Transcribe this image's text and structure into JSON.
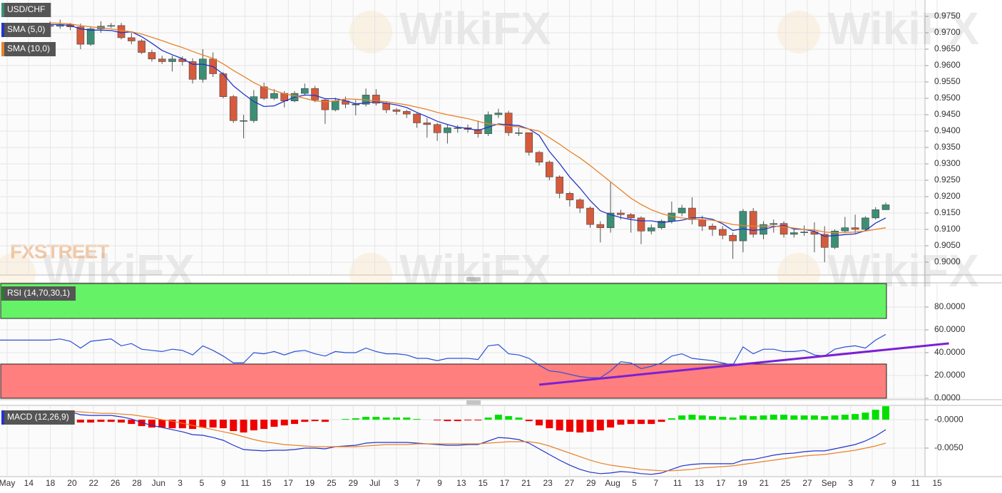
{
  "chart_data": [
    {
      "type": "candlestick",
      "title": "USD/CHF",
      "xtick_labels": [
        "May",
        "14",
        "18",
        "20",
        "22",
        "26",
        "28",
        "Jun",
        "3",
        "5",
        "9",
        "11",
        "15",
        "17",
        "19",
        "25",
        "29",
        "Jul",
        "3",
        "7",
        "9",
        "13",
        "15",
        "17",
        "21",
        "23",
        "27",
        "29",
        "Aug",
        "5",
        "7",
        "11",
        "13",
        "17",
        "19",
        "21",
        "25",
        "27",
        "Sep",
        "3",
        "7",
        "9",
        "11",
        "15"
      ],
      "up_color": "#3b8f75",
      "down_color": "#d65a3c",
      "open": [
        0.9722,
        0.972,
        0.9725,
        0.9718,
        0.9665,
        0.9712,
        0.972,
        0.9722,
        0.9685,
        0.9675,
        0.964,
        0.962,
        0.9612,
        0.962,
        0.9612,
        0.9558,
        0.962,
        0.9575,
        0.9505,
        0.9432,
        0.9432,
        0.9535,
        0.95,
        0.9515,
        0.9492,
        0.9515,
        0.953,
        0.9495,
        0.9465,
        0.9492,
        0.9482,
        0.9482,
        0.951,
        0.9485,
        0.9465,
        0.946,
        0.9452,
        0.9425,
        0.942,
        0.9395,
        0.941,
        0.941,
        0.9405,
        0.9392,
        0.945,
        0.9455,
        0.9395,
        0.9395,
        0.9335,
        0.9305,
        0.926,
        0.921,
        0.919,
        0.9165,
        0.9115,
        0.9105,
        0.915,
        0.9145,
        0.9135,
        0.9095,
        0.9105,
        0.9125,
        0.915,
        0.9165,
        0.913,
        0.911,
        0.91,
        0.9082,
        0.9065,
        0.9155,
        0.9085,
        0.9115,
        0.9118,
        0.9085,
        0.909,
        0.9092,
        0.9085,
        0.9045,
        0.9095,
        0.9105,
        0.91,
        0.9135,
        0.916
      ],
      "high": [
        0.9735,
        0.974,
        0.973,
        0.9728,
        0.972,
        0.9735,
        0.973,
        0.973,
        0.97,
        0.968,
        0.9648,
        0.963,
        0.963,
        0.9628,
        0.9622,
        0.965,
        0.964,
        0.958,
        0.951,
        0.945,
        0.9525,
        0.9548,
        0.9528,
        0.9522,
        0.9522,
        0.9545,
        0.9538,
        0.95,
        0.9502,
        0.9505,
        0.9495,
        0.953,
        0.9528,
        0.949,
        0.947,
        0.9465,
        0.9455,
        0.944,
        0.9425,
        0.942,
        0.9418,
        0.942,
        0.9432,
        0.946,
        0.9468,
        0.9462,
        0.941,
        0.9395,
        0.934,
        0.931,
        0.9265,
        0.9215,
        0.9195,
        0.917,
        0.9125,
        0.9245,
        0.916,
        0.915,
        0.914,
        0.9115,
        0.913,
        0.9185,
        0.9175,
        0.9198,
        0.9142,
        0.9118,
        0.911,
        0.909,
        0.9162,
        0.9165,
        0.9125,
        0.913,
        0.9125,
        0.91,
        0.9112,
        0.9122,
        0.911,
        0.91,
        0.9138,
        0.9145,
        0.914,
        0.9168,
        0.9182
      ],
      "low": [
        0.9712,
        0.9712,
        0.9708,
        0.965,
        0.966,
        0.97,
        0.9715,
        0.968,
        0.9665,
        0.9635,
        0.9612,
        0.9605,
        0.9582,
        0.96,
        0.9545,
        0.9548,
        0.9565,
        0.95,
        0.9425,
        0.9378,
        0.9425,
        0.9495,
        0.9495,
        0.9472,
        0.9488,
        0.9508,
        0.9488,
        0.9422,
        0.946,
        0.947,
        0.9448,
        0.9475,
        0.9478,
        0.9455,
        0.945,
        0.944,
        0.941,
        0.938,
        0.937,
        0.9362,
        0.9395,
        0.9395,
        0.938,
        0.9385,
        0.944,
        0.9385,
        0.9385,
        0.9325,
        0.9295,
        0.925,
        0.9195,
        0.917,
        0.915,
        0.9105,
        0.906,
        0.909,
        0.913,
        0.909,
        0.9055,
        0.9085,
        0.91,
        0.9118,
        0.914,
        0.9115,
        0.9095,
        0.908,
        0.907,
        0.901,
        0.903,
        0.9075,
        0.907,
        0.909,
        0.9075,
        0.9075,
        0.908,
        0.903,
        0.9,
        0.904,
        0.909,
        0.9088,
        0.9098,
        0.913,
        0.9162
      ],
      "close": [
        0.972,
        0.9725,
        0.9718,
        0.9665,
        0.9712,
        0.972,
        0.9722,
        0.9685,
        0.9675,
        0.964,
        0.962,
        0.9612,
        0.962,
        0.9612,
        0.9558,
        0.962,
        0.9575,
        0.9505,
        0.9432,
        0.9432,
        0.9505,
        0.95,
        0.9515,
        0.9492,
        0.9515,
        0.953,
        0.9495,
        0.9465,
        0.9492,
        0.9482,
        0.9482,
        0.951,
        0.9485,
        0.9465,
        0.946,
        0.9452,
        0.9425,
        0.942,
        0.9395,
        0.941,
        0.941,
        0.9405,
        0.9392,
        0.945,
        0.9455,
        0.9395,
        0.9395,
        0.9335,
        0.9305,
        0.926,
        0.921,
        0.919,
        0.9165,
        0.9115,
        0.9105,
        0.915,
        0.9145,
        0.9135,
        0.9095,
        0.9105,
        0.9125,
        0.915,
        0.9165,
        0.913,
        0.911,
        0.91,
        0.9082,
        0.9065,
        0.9155,
        0.9085,
        0.9115,
        0.9118,
        0.9085,
        0.909,
        0.9092,
        0.9085,
        0.9045,
        0.9095,
        0.9105,
        0.91,
        0.9135,
        0.916,
        0.9175
      ],
      "overlays": [
        {
          "name": "SMA (5,0)",
          "color": "#2233cc",
          "values": [
            0.9725,
            0.9725,
            0.9722,
            0.9712,
            0.9708,
            0.9708,
            0.9707,
            0.97,
            0.9703,
            0.9688,
            0.9668,
            0.9646,
            0.9633,
            0.9621,
            0.9604,
            0.9604,
            0.9597,
            0.9574,
            0.9538,
            0.9513,
            0.949,
            0.9475,
            0.9477,
            0.9491,
            0.9503,
            0.951,
            0.9509,
            0.9499,
            0.9499,
            0.9493,
            0.9483,
            0.9486,
            0.949,
            0.9485,
            0.948,
            0.9472,
            0.9457,
            0.9444,
            0.943,
            0.942,
            0.9412,
            0.9408,
            0.9402,
            0.9412,
            0.9422,
            0.9419,
            0.9417,
            0.9406,
            0.9387,
            0.9338,
            0.9301,
            0.926,
            0.9226,
            0.9188,
            0.9157,
            0.9145,
            0.9136,
            0.913,
            0.9126,
            0.9126,
            0.9121,
            0.9124,
            0.9128,
            0.9135,
            0.9136,
            0.9131,
            0.9117,
            0.9097,
            0.9102,
            0.9097,
            0.91,
            0.9108,
            0.9112,
            0.9101,
            0.91,
            0.9094,
            0.9079,
            0.9081,
            0.9084,
            0.9086,
            0.9096,
            0.9119,
            0.9135
          ]
        },
        {
          "name": "SMA (10,0)",
          "color": "#e8822a",
          "values": [
            0.973,
            0.9729,
            0.9727,
            0.9722,
            0.9718,
            0.9715,
            0.9712,
            0.9707,
            0.9703,
            0.9696,
            0.9686,
            0.9676,
            0.9665,
            0.9655,
            0.9643,
            0.9632,
            0.9622,
            0.9605,
            0.9585,
            0.9567,
            0.9548,
            0.9533,
            0.9524,
            0.9514,
            0.9508,
            0.95,
            0.9492,
            0.949,
            0.9492,
            0.9498,
            0.9497,
            0.9495,
            0.9492,
            0.949,
            0.9485,
            0.948,
            0.9473,
            0.9466,
            0.9457,
            0.945,
            0.9444,
            0.9438,
            0.943,
            0.9422,
            0.942,
            0.9415,
            0.9413,
            0.9406,
            0.94,
            0.938,
            0.936,
            0.9338,
            0.9318,
            0.9295,
            0.927,
            0.9245,
            0.922,
            0.9195,
            0.9176,
            0.916,
            0.9148,
            0.914,
            0.9135,
            0.9132,
            0.913,
            0.9128,
            0.9122,
            0.9115,
            0.9112,
            0.911,
            0.911,
            0.911,
            0.9108,
            0.9104,
            0.91,
            0.9098,
            0.9092,
            0.909,
            0.909,
            0.9092,
            0.9095,
            0.91,
            0.9105
          ]
        }
      ],
      "ylim": [
        0.8963,
        0.98
      ],
      "yticks": [
        {
          "value": 0.9,
          "label": "0.9000"
        },
        {
          "value": 0.905,
          "label": "0.9050"
        },
        {
          "value": 0.91,
          "label": "0.9100"
        },
        {
          "value": 0.915,
          "label": "0.9150"
        },
        {
          "value": 0.92,
          "label": "0.9200"
        },
        {
          "value": 0.925,
          "label": "0.9250"
        },
        {
          "value": 0.93,
          "label": "0.9300"
        },
        {
          "value": 0.935,
          "label": "0.9350"
        },
        {
          "value": 0.94,
          "label": "0.9400"
        },
        {
          "value": 0.945,
          "label": "0.9450"
        },
        {
          "value": 0.95,
          "label": "0.9500"
        },
        {
          "value": 0.955,
          "label": "0.9550"
        },
        {
          "value": 0.96,
          "label": "0.9600"
        },
        {
          "value": 0.965,
          "label": "0.9650"
        },
        {
          "value": 0.97,
          "label": "0.9700"
        },
        {
          "value": 0.975,
          "label": "0.9750"
        }
      ],
      "grid": true
    },
    {
      "type": "rsi",
      "title": "RSI (14,70,30,1)",
      "color": "#2a4fd8",
      "overbought": 70,
      "oversold": 30,
      "overbought_color": "#66f266",
      "oversold_color": "#ff7e7e",
      "values": [
        51,
        52,
        50,
        44,
        50,
        51,
        52,
        46,
        48,
        43,
        42,
        41,
        43,
        42,
        38,
        46,
        42,
        37,
        31,
        31,
        40,
        39,
        41,
        38,
        41,
        42,
        39,
        37,
        41,
        40,
        40,
        44,
        41,
        39,
        39,
        38,
        35,
        35,
        33,
        35,
        35,
        35,
        34,
        46,
        47,
        39,
        38,
        35,
        29,
        24,
        23,
        21,
        19,
        18,
        18,
        24,
        32,
        31,
        26,
        28,
        31,
        37,
        39,
        35,
        34,
        33,
        31,
        29,
        45,
        39,
        43,
        43,
        41,
        41,
        42,
        38,
        37,
        43,
        45,
        46,
        44,
        51,
        56
      ],
      "trendline": {
        "color": "#7b1fd6",
        "from": [
          48,
          11.9
        ],
        "to": [
          88.2,
          48.1
        ]
      },
      "ylim": [
        0,
        100.6
      ],
      "yticks": [
        {
          "value": 0,
          "label": "0.0000"
        },
        {
          "value": 20,
          "label": "20.0000"
        },
        {
          "value": 40,
          "label": "40.0000"
        },
        {
          "value": 60,
          "label": "60.0000"
        },
        {
          "value": 80,
          "label": "80.0000"
        }
      ],
      "grid": true
    },
    {
      "type": "macd",
      "title": "MACD (12,26,9)",
      "series": [
        {
          "color": "#2233cc",
          "values": [
            0.00138,
            0.0015,
            0.00138,
            0.00088,
            0.00075,
            0.00075,
            0.00075,
            0.0005,
            0.00013,
            -0.0005,
            -0.001,
            -0.00138,
            -0.00175,
            -0.00213,
            -0.00263,
            -0.00275,
            -0.00313,
            -0.00363,
            -0.0045,
            -0.00525,
            -0.00538,
            -0.0055,
            -0.00538,
            -0.00538,
            -0.00525,
            -0.005,
            -0.005,
            -0.00513,
            -0.00475,
            -0.00463,
            -0.0045,
            -0.00413,
            -0.004,
            -0.004,
            -0.004,
            -0.004,
            -0.00413,
            -0.00425,
            -0.00438,
            -0.0045,
            -0.0045,
            -0.00438,
            -0.00438,
            -0.00375,
            -0.00313,
            -0.00325,
            -0.0035,
            -0.00413,
            -0.00513,
            -0.00613,
            -0.00713,
            -0.008,
            -0.00875,
            -0.00925,
            -0.0095,
            -0.00938,
            -0.00913,
            -0.00925,
            -0.0095,
            -0.00963,
            -0.00938,
            -0.00875,
            -0.00813,
            -0.00788,
            -0.00775,
            -0.00775,
            -0.00775,
            -0.00775,
            -0.00713,
            -0.007,
            -0.00663,
            -0.00625,
            -0.006,
            -0.00588,
            -0.00563,
            -0.0055,
            -0.0055,
            -0.00513,
            -0.00475,
            -0.00438,
            -0.00375,
            -0.00288,
            -0.00175
          ]
        },
        {
          "color": "#e8822a",
          "values": [
            0.0015,
            0.0015,
            0.0015,
            0.00138,
            0.00125,
            0.00113,
            0.00113,
            0.001,
            0.00088,
            0.00063,
            0.00038,
            0,
            -0.00025,
            -0.00063,
            -0.001,
            -0.00138,
            -0.00175,
            -0.00213,
            -0.0025,
            -0.003,
            -0.0035,
            -0.00388,
            -0.00413,
            -0.00438,
            -0.0045,
            -0.00463,
            -0.00475,
            -0.00475,
            -0.00475,
            -0.00475,
            -0.00475,
            -0.00463,
            -0.0045,
            -0.00438,
            -0.00438,
            -0.00438,
            -0.00425,
            -0.00425,
            -0.00425,
            -0.00425,
            -0.00425,
            -0.00425,
            -0.00425,
            -0.00413,
            -0.004,
            -0.00388,
            -0.00388,
            -0.00388,
            -0.00413,
            -0.00463,
            -0.00525,
            -0.00588,
            -0.0065,
            -0.00713,
            -0.00763,
            -0.008,
            -0.00825,
            -0.0085,
            -0.00875,
            -0.00888,
            -0.009,
            -0.009,
            -0.00888,
            -0.00875,
            -0.0085,
            -0.00838,
            -0.00825,
            -0.00813,
            -0.00788,
            -0.00763,
            -0.00738,
            -0.00713,
            -0.00688,
            -0.00663,
            -0.00638,
            -0.00625,
            -0.00613,
            -0.00588,
            -0.00563,
            -0.00538,
            -0.005,
            -0.00463,
            -0.00413
          ]
        }
      ],
      "histogram": {
        "up_color": "#00e000",
        "down_color": "#ee0000",
        "values": [
          -0.00013,
          0,
          -0.00013,
          -0.0005,
          -0.0005,
          -0.00038,
          -0.00038,
          -0.0005,
          -0.00075,
          -0.00113,
          -0.00138,
          -0.00138,
          -0.0015,
          -0.0015,
          -0.00163,
          -0.00138,
          -0.00138,
          -0.0015,
          -0.002,
          -0.00225,
          -0.00188,
          -0.00163,
          -0.00125,
          -0.001,
          -0.00075,
          -0.00038,
          -0.00025,
          -0.00038,
          0,
          0.00013,
          0.00025,
          0.0005,
          0.0005,
          0.00038,
          0.00038,
          0.00038,
          0.00013,
          0,
          -0.00013,
          -0.00025,
          -0.00025,
          -0.00013,
          -0.00013,
          0.00038,
          0.00088,
          0.00063,
          0.00038,
          -0.00025,
          -0.001,
          -0.0015,
          -0.00188,
          -0.00213,
          -0.00225,
          -0.00213,
          -0.00188,
          -0.00138,
          -0.00088,
          -0.00075,
          -0.00075,
          -0.00075,
          -0.00038,
          0.00025,
          0.00075,
          0.00088,
          0.00075,
          0.00063,
          0.0005,
          0.00038,
          0.00075,
          0.00063,
          0.00075,
          0.00088,
          0.00088,
          0.00075,
          0.00075,
          0.00075,
          0.00063,
          0.00075,
          0.00088,
          0.001,
          0.00125,
          0.00175,
          0.00238
        ]
      },
      "ylim": [
        -0.0099,
        0.0024
      ],
      "yticks": [
        {
          "value": 0,
          "label": "-0.0000"
        },
        {
          "value": -0.005,
          "label": "-0.0050"
        }
      ],
      "grid": true
    }
  ],
  "watermarks": [
    "WikiFX",
    "FXSTREET"
  ]
}
